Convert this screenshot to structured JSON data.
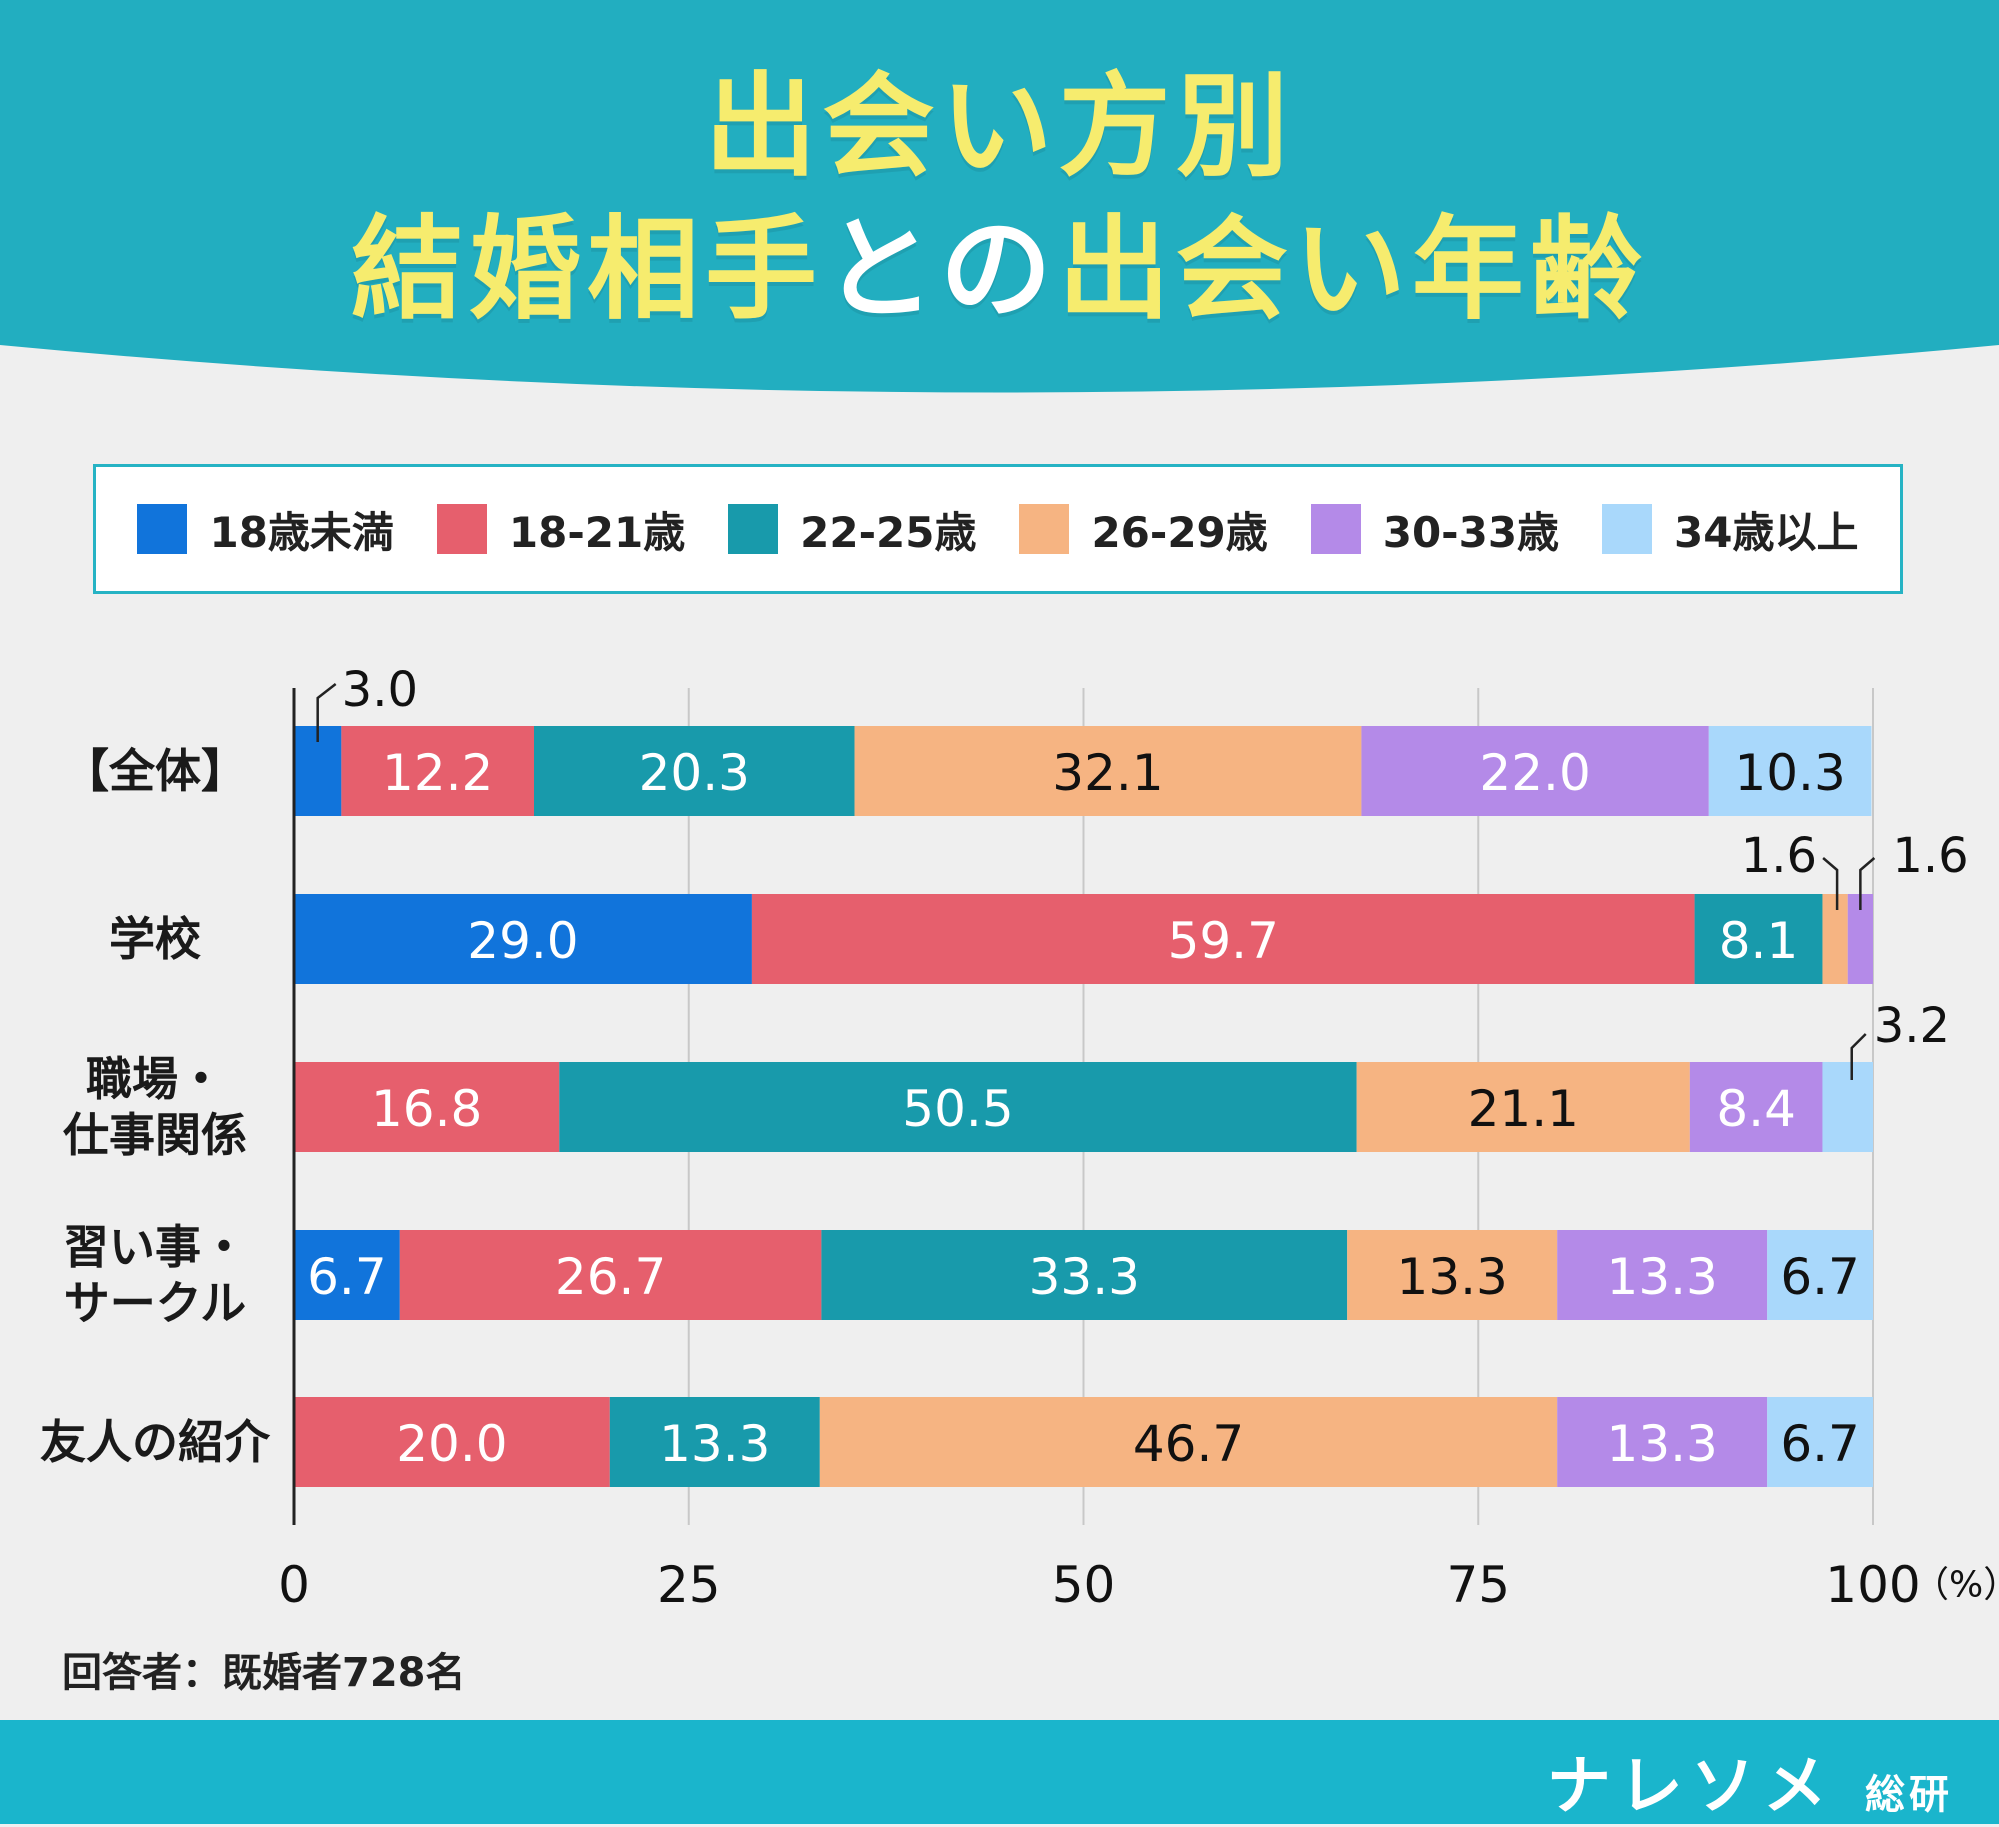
{
  "title": {
    "line1": "出会い方別",
    "line2_a": "結婚相手",
    "line2_b": "との",
    "line2_c": "出会い年齢"
  },
  "footer": {
    "respondents": "回答者：既婚者728名",
    "brand": "ナレソメ",
    "brand_sub": "総研"
  },
  "colors": {
    "header": "#22aec0",
    "footer": "#1ab5cc",
    "title_yellow": "#f6ec6e",
    "series": [
      "#1174db",
      "#e65f6d",
      "#189aab",
      "#f6b482",
      "#b48ae8",
      "#a9d8fb"
    ]
  },
  "chart_data": {
    "type": "bar",
    "orientation": "horizontal-stacked",
    "title": "出会い方別 結婚相手との出会い年齢",
    "categories": [
      "【全体】",
      "学校",
      "職場・仕事関係",
      "習い事・サークル",
      "友人の紹介"
    ],
    "category_lines": [
      [
        "【全体】"
      ],
      [
        "学校"
      ],
      [
        "職場・",
        "仕事関係"
      ],
      [
        "習い事・",
        "サークル"
      ],
      [
        "友人の紹介"
      ]
    ],
    "series": [
      {
        "name": "18歳未満",
        "values": [
          3.0,
          29.0,
          0,
          6.7,
          0
        ]
      },
      {
        "name": "18-21歳",
        "values": [
          12.2,
          59.7,
          16.8,
          26.7,
          20.0
        ]
      },
      {
        "name": "22-25歳",
        "values": [
          20.3,
          8.1,
          50.5,
          33.3,
          13.3
        ]
      },
      {
        "name": "26-29歳",
        "values": [
          32.1,
          1.6,
          21.1,
          13.3,
          46.7
        ]
      },
      {
        "name": "30-33歳",
        "values": [
          22.0,
          1.6,
          8.4,
          13.3,
          13.3
        ]
      },
      {
        "name": "34歳以上",
        "values": [
          10.3,
          0,
          3.2,
          6.7,
          6.7
        ]
      }
    ],
    "data_labels": [
      [
        "3.0",
        "12.2",
        "20.3",
        "32.1",
        "22.0",
        "10.3"
      ],
      [
        "29.0",
        "59.7",
        "8.1",
        "1.6",
        "1.6",
        ""
      ],
      [
        "",
        "16.8",
        "50.5",
        "21.1",
        "8.4",
        "3.2"
      ],
      [
        "6.7",
        "26.7",
        "33.3",
        "13.3",
        "13.3",
        "6.7"
      ],
      [
        "",
        "20.0",
        "13.3",
        "46.7",
        "13.3",
        "6.7"
      ]
    ],
    "x_ticks": [
      "0",
      "25",
      "50",
      "75",
      "100"
    ],
    "xlim": [
      0,
      100
    ],
    "x_unit": "（%）",
    "grid": true,
    "legend_position": "top"
  }
}
